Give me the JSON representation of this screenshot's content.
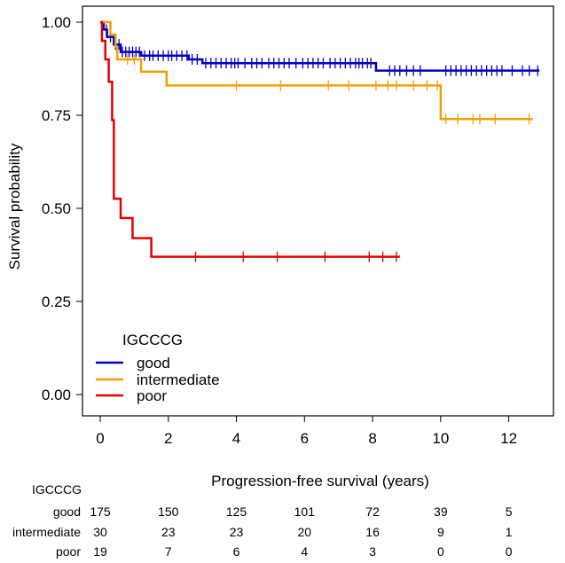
{
  "chart_data": {
    "type": "line",
    "subtype": "kaplan-meier",
    "title": "",
    "xlabel": "Progression-free survival (years)",
    "ylabel": "Survival probability",
    "xlim": [
      0,
      13
    ],
    "ylim": [
      0,
      1.0
    ],
    "x_ticks": [
      0,
      2,
      4,
      6,
      8,
      10,
      12
    ],
    "y_ticks": [
      0.0,
      0.25,
      0.5,
      0.75,
      1.0
    ],
    "y_tick_labels": [
      "0.00",
      "0.25",
      "0.50",
      "0.75",
      "1.00"
    ],
    "grid": false,
    "legend": {
      "title": "IGCCCG",
      "position": "bottom-left",
      "entries": [
        "good",
        "intermediate",
        "poor"
      ]
    },
    "series": [
      {
        "name": "good",
        "color": "#0000c0",
        "steps": [
          [
            0,
            1.0
          ],
          [
            0.1,
            0.98
          ],
          [
            0.2,
            0.96
          ],
          [
            0.4,
            0.94
          ],
          [
            0.6,
            0.92
          ],
          [
            1.2,
            0.91
          ],
          [
            2.6,
            0.9
          ],
          [
            3.0,
            0.89
          ],
          [
            8.1,
            0.87
          ],
          [
            12.9,
            0.87
          ]
        ],
        "censors": [
          0.18,
          0.3,
          0.45,
          0.55,
          0.65,
          0.75,
          0.85,
          0.95,
          1.05,
          1.15,
          1.3,
          1.45,
          1.55,
          1.7,
          1.85,
          2.0,
          2.1,
          2.25,
          2.4,
          2.55,
          2.7,
          2.85,
          3.1,
          3.25,
          3.4,
          3.55,
          3.7,
          3.85,
          3.95,
          4.05,
          4.25,
          4.45,
          4.6,
          4.75,
          4.95,
          5.1,
          5.25,
          5.4,
          5.55,
          5.75,
          5.95,
          6.1,
          6.25,
          6.4,
          6.55,
          6.75,
          6.9,
          7.05,
          7.2,
          7.35,
          7.5,
          7.6,
          7.7,
          7.85,
          7.95,
          8.5,
          8.65,
          8.8,
          9.0,
          9.2,
          9.4,
          10.15,
          10.3,
          10.45,
          10.6,
          10.75,
          10.9,
          11.05,
          11.2,
          11.35,
          11.5,
          11.65,
          11.8,
          12.1,
          12.4,
          12.6,
          12.85
        ]
      },
      {
        "name": "intermediate",
        "color": "#f0a000",
        "steps": [
          [
            0,
            1.0
          ],
          [
            0.3,
            0.967
          ],
          [
            0.45,
            0.933
          ],
          [
            0.5,
            0.9
          ],
          [
            1.2,
            0.867
          ],
          [
            1.95,
            0.83
          ],
          [
            10.0,
            0.74
          ],
          [
            12.7,
            0.74
          ]
        ],
        "censors": [
          0.8,
          1.0,
          4.0,
          5.3,
          6.7,
          7.3,
          8.1,
          8.45,
          8.7,
          9.2,
          9.6,
          9.9,
          10.15,
          10.5,
          10.95,
          11.15,
          11.6,
          12.6
        ]
      },
      {
        "name": "poor",
        "color": "#e00000",
        "steps": [
          [
            0,
            1.0
          ],
          [
            0.05,
            0.95
          ],
          [
            0.15,
            0.9
          ],
          [
            0.25,
            0.84
          ],
          [
            0.35,
            0.737
          ],
          [
            0.4,
            0.526
          ],
          [
            0.6,
            0.474
          ],
          [
            0.95,
            0.42
          ],
          [
            1.5,
            0.37
          ],
          [
            8.8,
            0.37
          ]
        ],
        "censors": [
          2.8,
          4.2,
          5.2,
          6.6,
          7.9,
          8.3,
          8.7
        ]
      }
    ],
    "risk_table": {
      "title": "IGCCCG",
      "times": [
        0,
        2,
        4,
        6,
        8,
        10,
        12
      ],
      "rows": [
        {
          "name": "good",
          "counts": [
            "175",
            "150",
            "125",
            "101",
            "72",
            "39",
            "5"
          ]
        },
        {
          "name": "intermediate",
          "counts": [
            "30",
            "23",
            "23",
            "20",
            "16",
            "9",
            "1"
          ]
        },
        {
          "name": "poor",
          "counts": [
            "19",
            "7",
            "6",
            "4",
            "3",
            "0",
            "0"
          ]
        }
      ]
    }
  }
}
